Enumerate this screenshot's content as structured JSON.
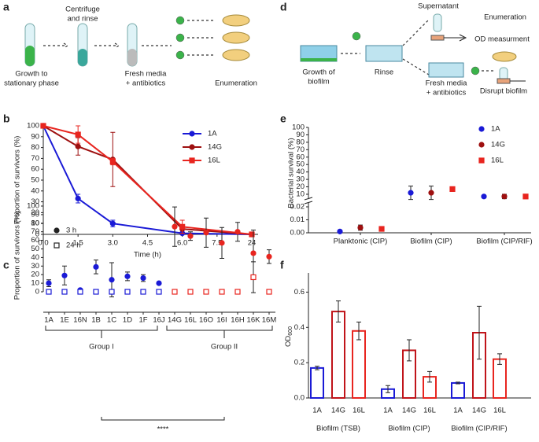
{
  "panel_labels": [
    "a",
    "b",
    "c",
    "d",
    "e",
    "f"
  ],
  "diagram_a": {
    "steps": [
      [
        "Growth to",
        "stationary phase"
      ],
      [
        "Centrifuge",
        "and rinse"
      ],
      [
        "Fresh media",
        "+ antibiotics"
      ],
      [
        "Enumeration"
      ]
    ]
  },
  "diagram_d": {
    "steps": [
      [
        "Growth of",
        "biofilm"
      ],
      [
        "Rinse"
      ],
      [
        "Supernatant"
      ],
      [
        "Enumeration"
      ],
      [
        "OD measurment"
      ],
      [
        "Fresh media",
        "+ antibiotics"
      ],
      [
        "Disrupt biofilm"
      ]
    ]
  },
  "chart_data": [
    {
      "type": "line",
      "xlabel": "Time (h)",
      "ylabel": "Proportion of survivors (%)",
      "x": [
        0,
        1.5,
        3,
        6,
        24
      ],
      "xticks": [
        {
          "value": 0,
          "label": "0.0"
        },
        1.5,
        {
          "value": 3,
          "label": "3.0"
        },
        4.5,
        {
          "value": 6,
          "label": "6.0"
        },
        7.5,
        24
      ],
      "ylim": [
        0,
        100
      ],
      "yticks": [
        0,
        10,
        20,
        30,
        40,
        50,
        60,
        70,
        80,
        90,
        100
      ],
      "legend": "upper right",
      "series": [
        {
          "name": "1A",
          "color": "#1a1ad6",
          "marker": "circle",
          "values": [
            100,
            33,
            10,
            1,
            0
          ],
          "errors": [
            0,
            4,
            3,
            1,
            0
          ]
        },
        {
          "name": "14G",
          "color": "#9e1010",
          "marker": "circle",
          "values": [
            100,
            81,
            69,
            5,
            0
          ],
          "errors": [
            0,
            8,
            25,
            4,
            0
          ]
        },
        {
          "name": "16L",
          "color": "#e8251f",
          "marker": "square",
          "values": [
            100,
            92,
            67,
            7,
            0
          ],
          "errors": [
            0,
            8,
            3,
            6,
            0
          ]
        }
      ]
    },
    {
      "type": "scatter",
      "ylabel": "Proportion of survivors (%)",
      "categories": [
        "1A",
        "1E",
        "16N",
        "1B",
        "1C",
        "1D",
        "1F",
        "16J",
        "14G",
        "16L",
        "16O",
        "16I",
        "16H",
        "16K",
        "16M"
      ],
      "point_colors": [
        "#1a1ad6",
        "#1a1ad6",
        "#1a1ad6",
        "#1a1ad6",
        "#1a1ad6",
        "#1a1ad6",
        "#1a1ad6",
        "#1a1ad6",
        "#e8251f",
        "#e8251f",
        "#e8251f",
        "#e8251f",
        "#e8251f",
        "#e8251f",
        "#e8251f"
      ],
      "ylim": [
        0,
        100
      ],
      "yticks": [
        0,
        10,
        20,
        30,
        40,
        50,
        60,
        70,
        80,
        90,
        100
      ],
      "legend": "upper left",
      "annotations": [
        "Group I",
        "Group II",
        "****"
      ],
      "series": [
        {
          "name": "3 h",
          "marker": "circle",
          "filled": true,
          "values": [
            10,
            19,
            2,
            29,
            14,
            18,
            16,
            10,
            76,
            65,
            69,
            57,
            70,
            45,
            41
          ],
          "errors": [
            4,
            11,
            null,
            8,
            20,
            5,
            4,
            null,
            23,
            5,
            17,
            18,
            11,
            27,
            8
          ]
        },
        {
          "name": "24 h",
          "marker": "square",
          "filled": false,
          "values": [
            0,
            0,
            0,
            0,
            0,
            0,
            0,
            0,
            0,
            0,
            0,
            0,
            0,
            17,
            0
          ],
          "errors": [
            null,
            null,
            null,
            null,
            null,
            null,
            null,
            null,
            null,
            null,
            null,
            null,
            null,
            18,
            null
          ]
        }
      ]
    },
    {
      "type": "scatter",
      "ylabel": "Bacterial survival (%)",
      "categories": [
        "Planktonic (CIP)",
        "Biofilm (CIP)",
        "Biofilm (CIP/RIF)"
      ],
      "ylim": [
        0,
        100
      ],
      "ybreak": [
        0.02,
        10
      ],
      "yticks": [
        {
          "value": 0,
          "label": "0.00"
        },
        {
          "value": 0.01,
          "label": "0.01"
        },
        {
          "value": 0.02,
          "label": "0.02"
        },
        10,
        20,
        30,
        40,
        50,
        60,
        70,
        80,
        90,
        100
      ],
      "legend": "upper right",
      "series": [
        {
          "name": "1A",
          "color": "#1a1ad6",
          "marker": "circle",
          "values": [
            0.001,
            12,
            7
          ],
          "errors": [
            null,
            9,
            null
          ]
        },
        {
          "name": "14G",
          "color": "#9e1010",
          "marker": "circle",
          "values": [
            0.004,
            12,
            7
          ],
          "errors": [
            0.002,
            9,
            3
          ]
        },
        {
          "name": "16L",
          "color": "#e8251f",
          "marker": "square",
          "values": [
            0.003,
            17,
            7
          ],
          "errors": [
            null,
            3,
            3
          ]
        }
      ]
    },
    {
      "type": "bar",
      "ylabel": "OD",
      "ylabel_subscript": "600",
      "categories": [
        "Biofilm (TSB)",
        "Biofilm (CIP)",
        "Biofilm (CIP/RIF)"
      ],
      "ylim": [
        0,
        0.7
      ],
      "yticks": [
        {
          "value": 0,
          "label": "0.0"
        },
        0.2,
        0.4,
        0.6
      ],
      "series": [
        {
          "name": "1A",
          "color": "#1a1ad6",
          "values": [
            0.17,
            0.05,
            0.085
          ],
          "errors": [
            0.01,
            0.02,
            0.005
          ]
        },
        {
          "name": "14G",
          "color": "#c0141a",
          "values": [
            0.49,
            0.27,
            0.37
          ],
          "errors": [
            0.06,
            0.06,
            0.15
          ]
        },
        {
          "name": "16L",
          "color": "#e8251f",
          "values": [
            0.38,
            0.12,
            0.22
          ],
          "errors": [
            0.05,
            0.03,
            0.03
          ]
        }
      ]
    }
  ]
}
